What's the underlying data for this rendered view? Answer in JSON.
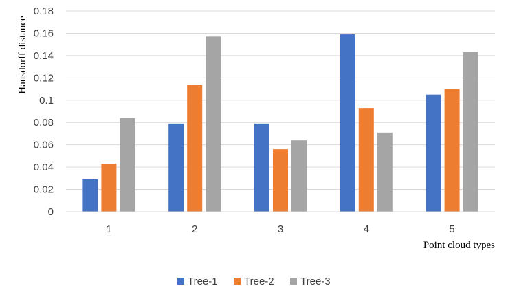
{
  "chart_data": {
    "type": "bar",
    "xlabel": "Point cloud types",
    "ylabel": "Hausdorff distance",
    "categories": [
      "1",
      "2",
      "3",
      "4",
      "5"
    ],
    "ylim": [
      0,
      0.18
    ],
    "yticks": [
      "0",
      "0.02",
      "0.04",
      "0.06",
      "0.08",
      "0.1",
      "0.12",
      "0.14",
      "0.16",
      "0.18"
    ],
    "grid": true,
    "legend_position": "bottom",
    "series": [
      {
        "name": "Tree-1",
        "color": "#4472C4",
        "values": [
          0.029,
          0.079,
          0.079,
          0.159,
          0.105
        ]
      },
      {
        "name": "Tree-2",
        "color": "#ED7D31",
        "values": [
          0.043,
          0.114,
          0.056,
          0.093,
          0.11
        ]
      },
      {
        "name": "Tree-3",
        "color": "#A5A5A5",
        "values": [
          0.084,
          0.157,
          0.064,
          0.071,
          0.143
        ]
      }
    ]
  }
}
